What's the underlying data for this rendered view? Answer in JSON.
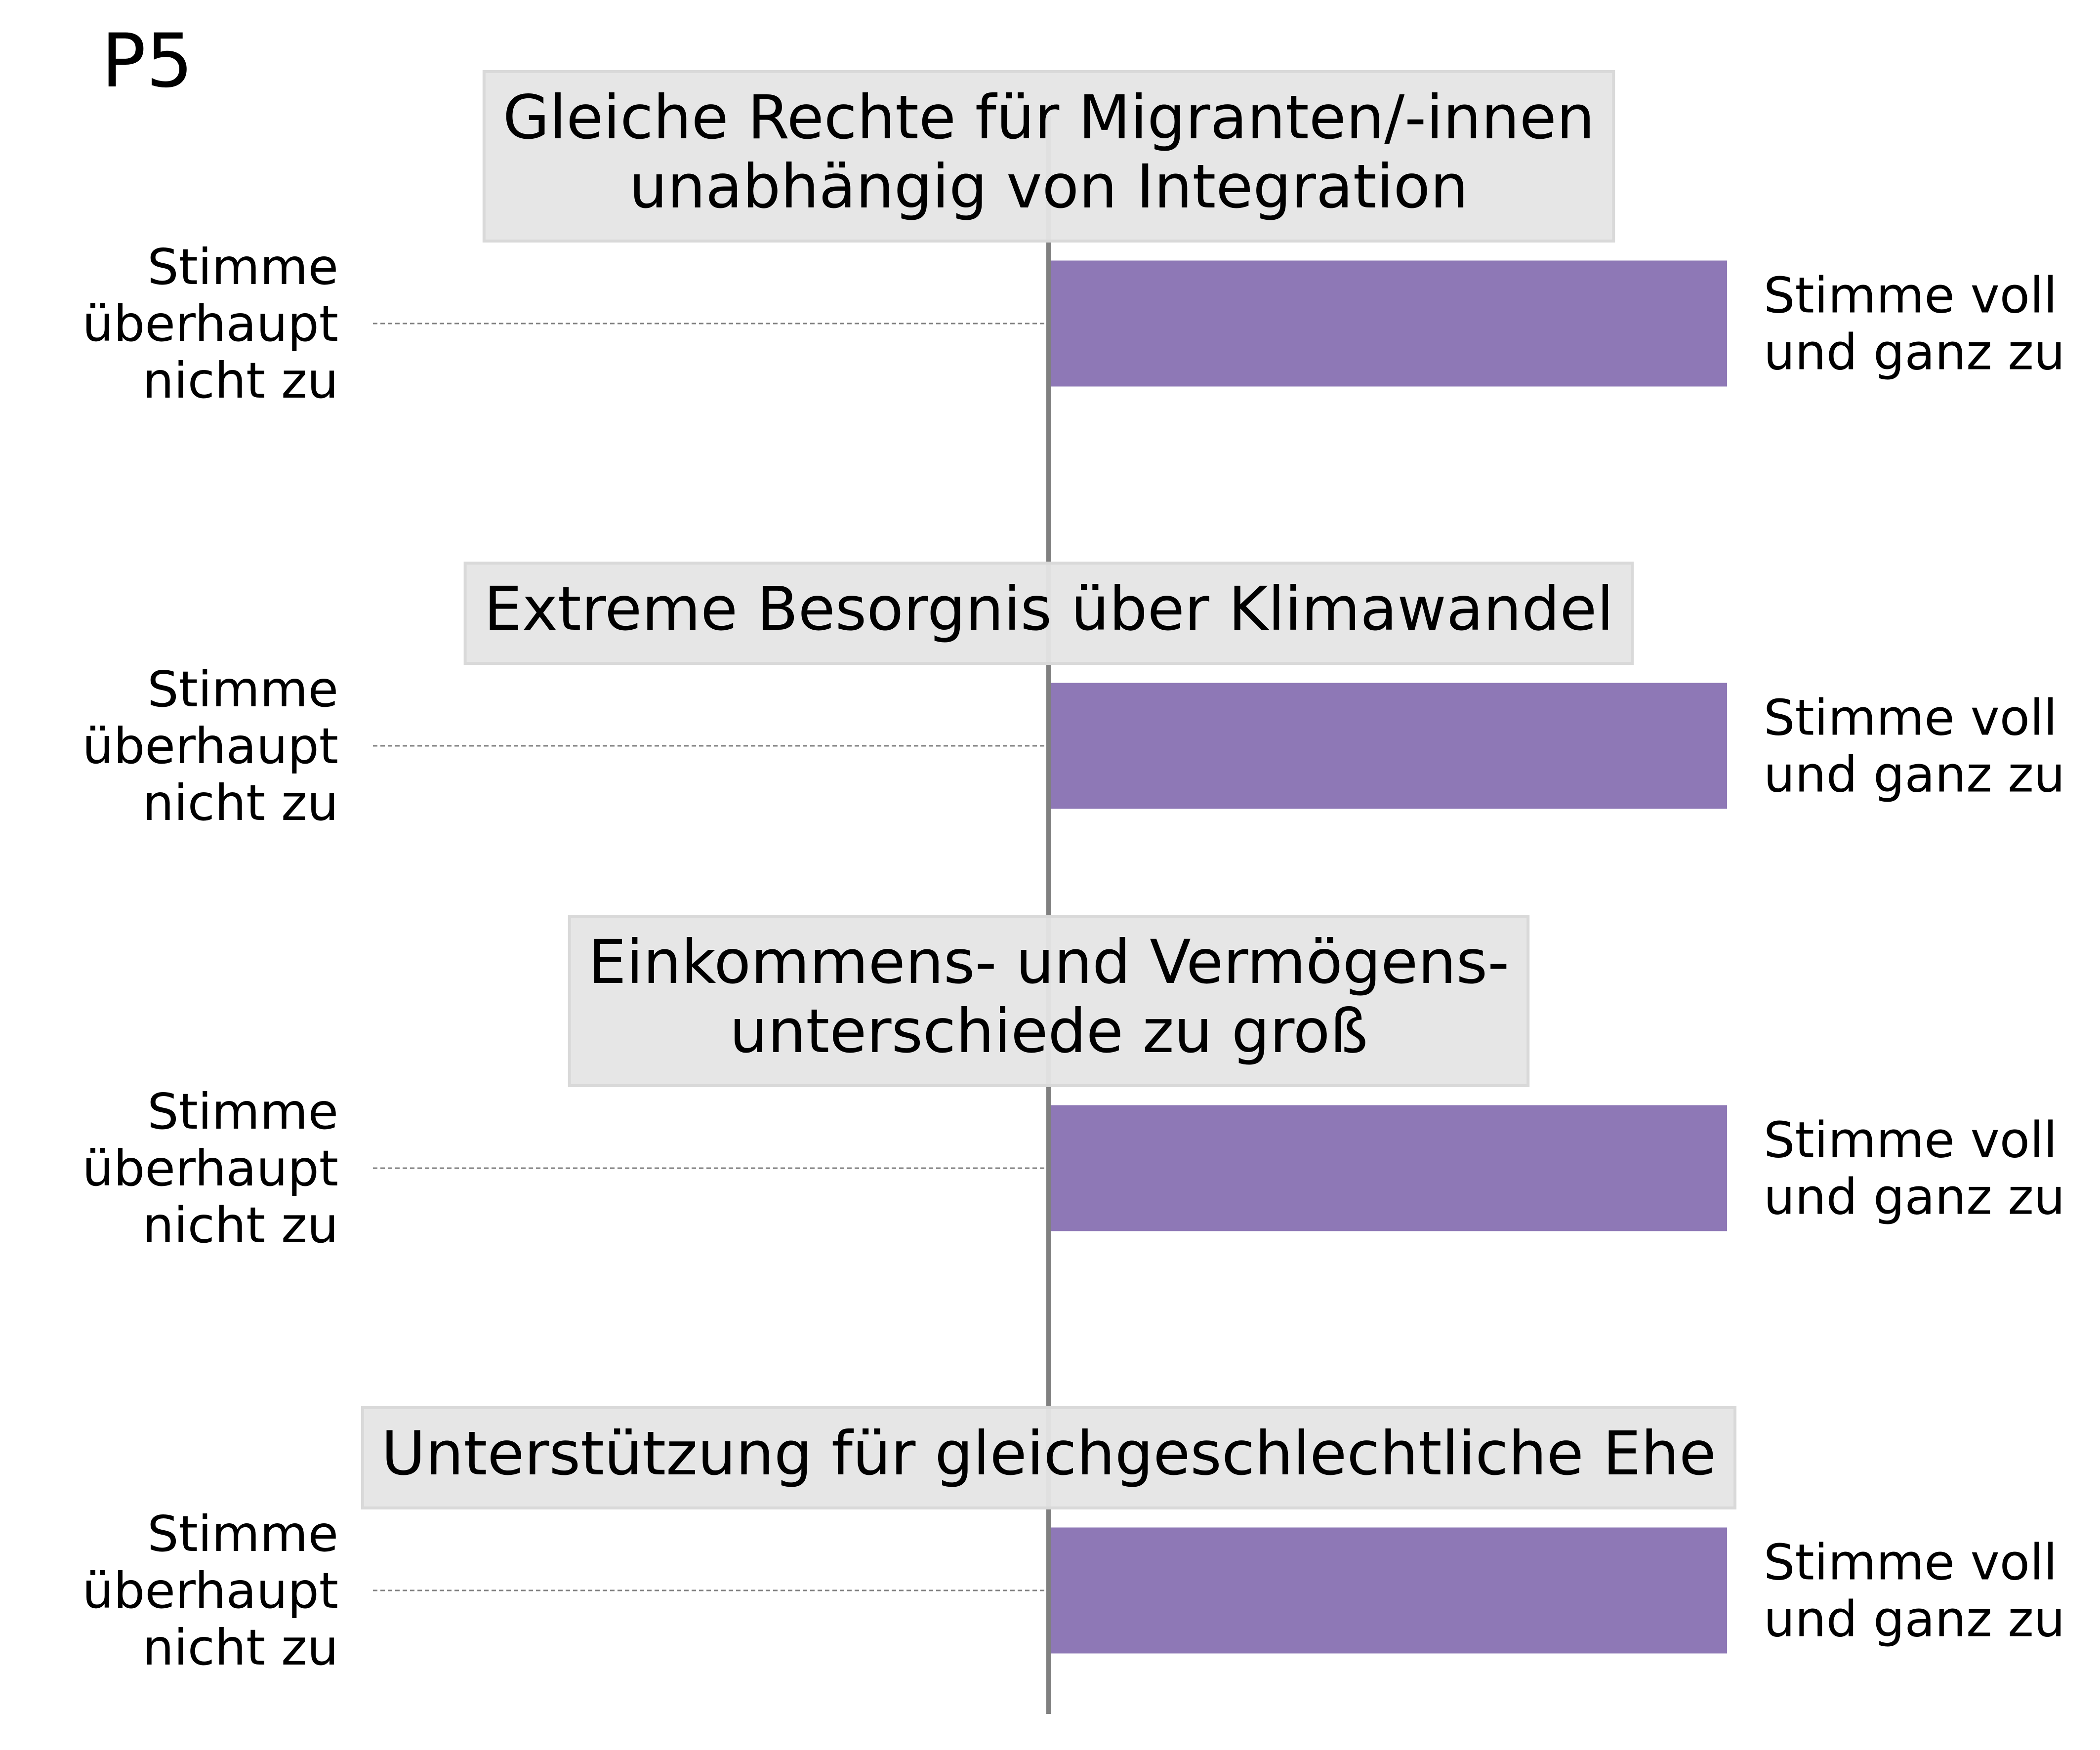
{
  "panel_label": "P5",
  "chart_data": {
    "type": "bar",
    "orientation": "horizontal",
    "scale": {
      "min_label": "Stimme überhaupt nicht zu",
      "max_label": "Stimme voll und ganz zu"
    },
    "xlim": [
      -1,
      1
    ],
    "center": 0,
    "categories": [
      "Gleiche Rechte für Migranten/-innen unabhängig von Integration",
      "Extreme Besorgnis über Klimawandel",
      "Einkommens- und Vermögens-unterschiede zu groß",
      "Unterstützung für gleichgeschlechtliche Ehe"
    ],
    "values": [
      1.0,
      1.0,
      1.0,
      1.0
    ],
    "grid": false,
    "legend": "none"
  },
  "items": [
    {
      "title_lines": [
        "Gleiche Rechte für Migranten/-innen",
        "unabhängig von Integration"
      ],
      "left_label_lines": [
        "Stimme",
        "überhaupt",
        "nicht zu"
      ],
      "right_label_lines": [
        "Stimme voll",
        "und ganz zu"
      ]
    },
    {
      "title_lines": [
        "Extreme Besorgnis über Klimawandel"
      ],
      "left_label_lines": [
        "Stimme",
        "überhaupt",
        "nicht zu"
      ],
      "right_label_lines": [
        "Stimme voll",
        "und ganz zu"
      ]
    },
    {
      "title_lines": [
        "Einkommens- und Vermögens-",
        "unterschiede zu groß"
      ],
      "left_label_lines": [
        "Stimme",
        "überhaupt",
        "nicht zu"
      ],
      "right_label_lines": [
        "Stimme voll",
        "und ganz zu"
      ]
    },
    {
      "title_lines": [
        "Unterstützung für gleichgeschlechtliche Ehe"
      ],
      "left_label_lines": [
        "Stimme",
        "überhaupt",
        "nicht zu"
      ],
      "right_label_lines": [
        "Stimme voll",
        "und ganz zu"
      ]
    }
  ],
  "colors": {
    "bar": "#8e78b6",
    "title_box_fill": "#e5e5e5",
    "title_box_stroke": "#d9d9d9",
    "center_line": "#808080",
    "dashed_line": "#808080",
    "text": "#000000"
  }
}
